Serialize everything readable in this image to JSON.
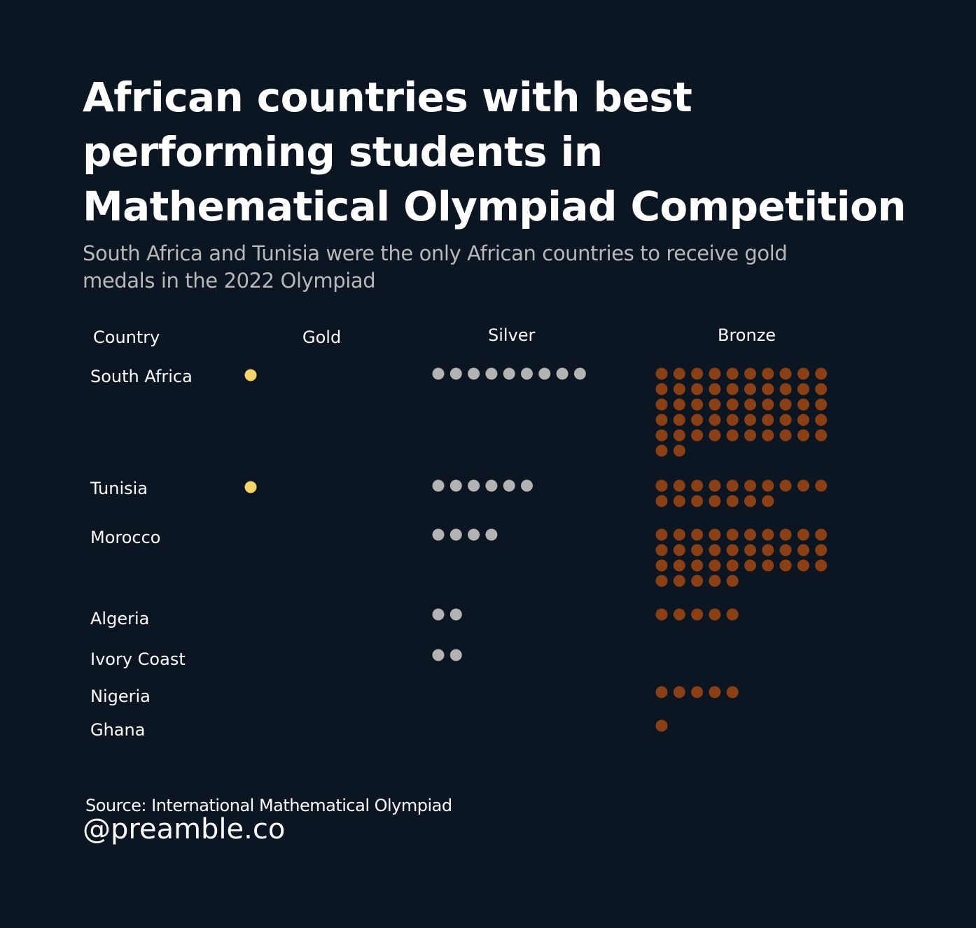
{
  "title": "African countries with best performing students in Mathematical Olympiad Competition",
  "subtitle": "South Africa and Tunisia were the only African countries to receive gold medals in the 2022 Olympiad",
  "footer": {
    "source": "Source: International Mathematical Olympiad",
    "handle": "@preamble.co"
  },
  "chart_data": {
    "type": "dot-matrix",
    "columns": [
      "Country",
      "Gold",
      "Silver",
      "Bronze"
    ],
    "colors": {
      "background": "#0c1622",
      "gold": "#f5d46b",
      "silver": "#b3b3b3",
      "bronze": "#8b3f14"
    },
    "rows": [
      {
        "country": "South Africa",
        "gold": 1,
        "silver": 9,
        "bronze": 52
      },
      {
        "country": "Tunisia",
        "gold": 1,
        "silver": 6,
        "bronze": 17
      },
      {
        "country": "Morocco",
        "gold": 0,
        "silver": 4,
        "bronze": 35
      },
      {
        "country": "Algeria",
        "gold": 0,
        "silver": 2,
        "bronze": 5
      },
      {
        "country": "Ivory Coast",
        "gold": 0,
        "silver": 2,
        "bronze": 0
      },
      {
        "country": "Nigeria",
        "gold": 0,
        "silver": 0,
        "bronze": 5
      },
      {
        "country": "Ghana",
        "gold": 0,
        "silver": 0,
        "bronze": 1
      }
    ]
  }
}
